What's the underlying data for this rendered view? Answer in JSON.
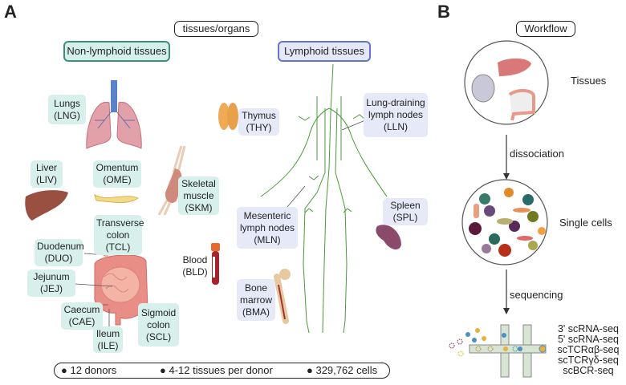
{
  "panel_a": {
    "letter": "A",
    "title": "tissues/organs",
    "non_lymphoid_header": "Non-lymphoid tissues",
    "lymphoid_header": "Lymphoid tissues",
    "non_lymphoid": {
      "lungs": [
        "Lungs",
        "(LNG)"
      ],
      "liver": [
        "Liver",
        "(LIV)"
      ],
      "omentum": [
        "Omentum",
        "(OME)"
      ],
      "skeletal_muscle": [
        "Skeletal",
        "muscle",
        "(SKM)"
      ],
      "transverse_colon": [
        "Transverse",
        "colon",
        "(TCL)"
      ],
      "duodenum": [
        "Duodenum",
        "(DUO)"
      ],
      "jejunum": [
        "Jejunum",
        "(JEJ)"
      ],
      "caecum": [
        "Caecum",
        "(CAE)"
      ],
      "ileum": [
        "Ileum",
        "(ILE)"
      ],
      "sigmoid_colon": [
        "Sigmoid",
        "colon",
        "(SCL)"
      ],
      "blood": [
        "Blood",
        "(BLD)"
      ]
    },
    "lymphoid": {
      "thymus": [
        "Thymus",
        "(THY)"
      ],
      "lung_draining": [
        "Lung-draining",
        "lymph nodes",
        "(LLN)"
      ],
      "mesenteric": [
        "Mesenteric",
        "lymph nodes",
        "(MLN)"
      ],
      "spleen": [
        "Spleen",
        "(SPL)"
      ],
      "bone_marrow": [
        "Bone",
        "marrow",
        "(BMA)"
      ]
    },
    "summary": [
      "12 donors",
      "4-12 tissues per donor",
      "329,762 cells"
    ]
  },
  "panel_b": {
    "letter": "B",
    "title": "Workflow",
    "steps": [
      "Tissues",
      "Single cells"
    ],
    "arrows": [
      "dissociation",
      "sequencing"
    ],
    "assays": [
      "3' scRNA-seq",
      "5' scRNA-seq",
      "scTCRαβ-seq",
      "scTCRγδ-seq",
      "scBCR-seq"
    ]
  },
  "colors": {
    "non_lymphoid": "#3f8f7f",
    "lymphoid": "#6375c4",
    "lymphatic": "#4a9a3a"
  }
}
